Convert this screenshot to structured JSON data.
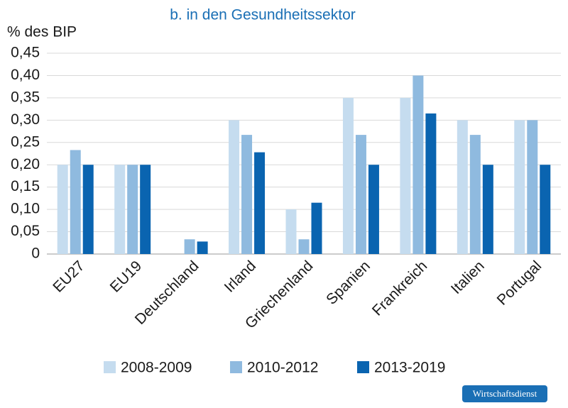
{
  "chart_data": {
    "type": "bar",
    "title": "b. in den Gesundheitssektor",
    "y_label": "% des BIP",
    "watermark": "Wirtschaftsdienst",
    "categories": [
      "EU27",
      "EU19",
      "Deutschland",
      "Irland",
      "Griechenland",
      "Spanien",
      "Frankreich",
      "Italien",
      "Portugal"
    ],
    "series": [
      {
        "name": "2008-2009",
        "color": "#c5dcef",
        "values": [
          0.2,
          0.2,
          null,
          0.3,
          0.1,
          0.35,
          0.35,
          0.3,
          0.3
        ]
      },
      {
        "name": "2010-2012",
        "color": "#8fbadf",
        "values": [
          0.233,
          0.2,
          0.033,
          0.267,
          0.033,
          0.267,
          0.4,
          0.267,
          0.3
        ]
      },
      {
        "name": "2013-2019",
        "color": "#0a64b0",
        "values": [
          0.2,
          0.2,
          0.028,
          0.228,
          0.115,
          0.2,
          0.315,
          0.2,
          0.2
        ]
      }
    ],
    "ylim": [
      0,
      0.45
    ],
    "yticks": [
      0,
      {
        "value": 0.05,
        "label": "0,05"
      },
      {
        "value": 0.1,
        "label": "0,10"
      },
      {
        "value": 0.15,
        "label": "0,15"
      },
      {
        "value": 0.2,
        "label": "0,20"
      },
      {
        "value": 0.25,
        "label": "0,25"
      },
      {
        "value": 0.3,
        "label": "0,30"
      },
      {
        "value": 0.35,
        "label": "0,35"
      },
      {
        "value": 0.4,
        "label": "0,40"
      },
      {
        "value": 0.45,
        "label": "0,45"
      }
    ],
    "grid": true
  }
}
